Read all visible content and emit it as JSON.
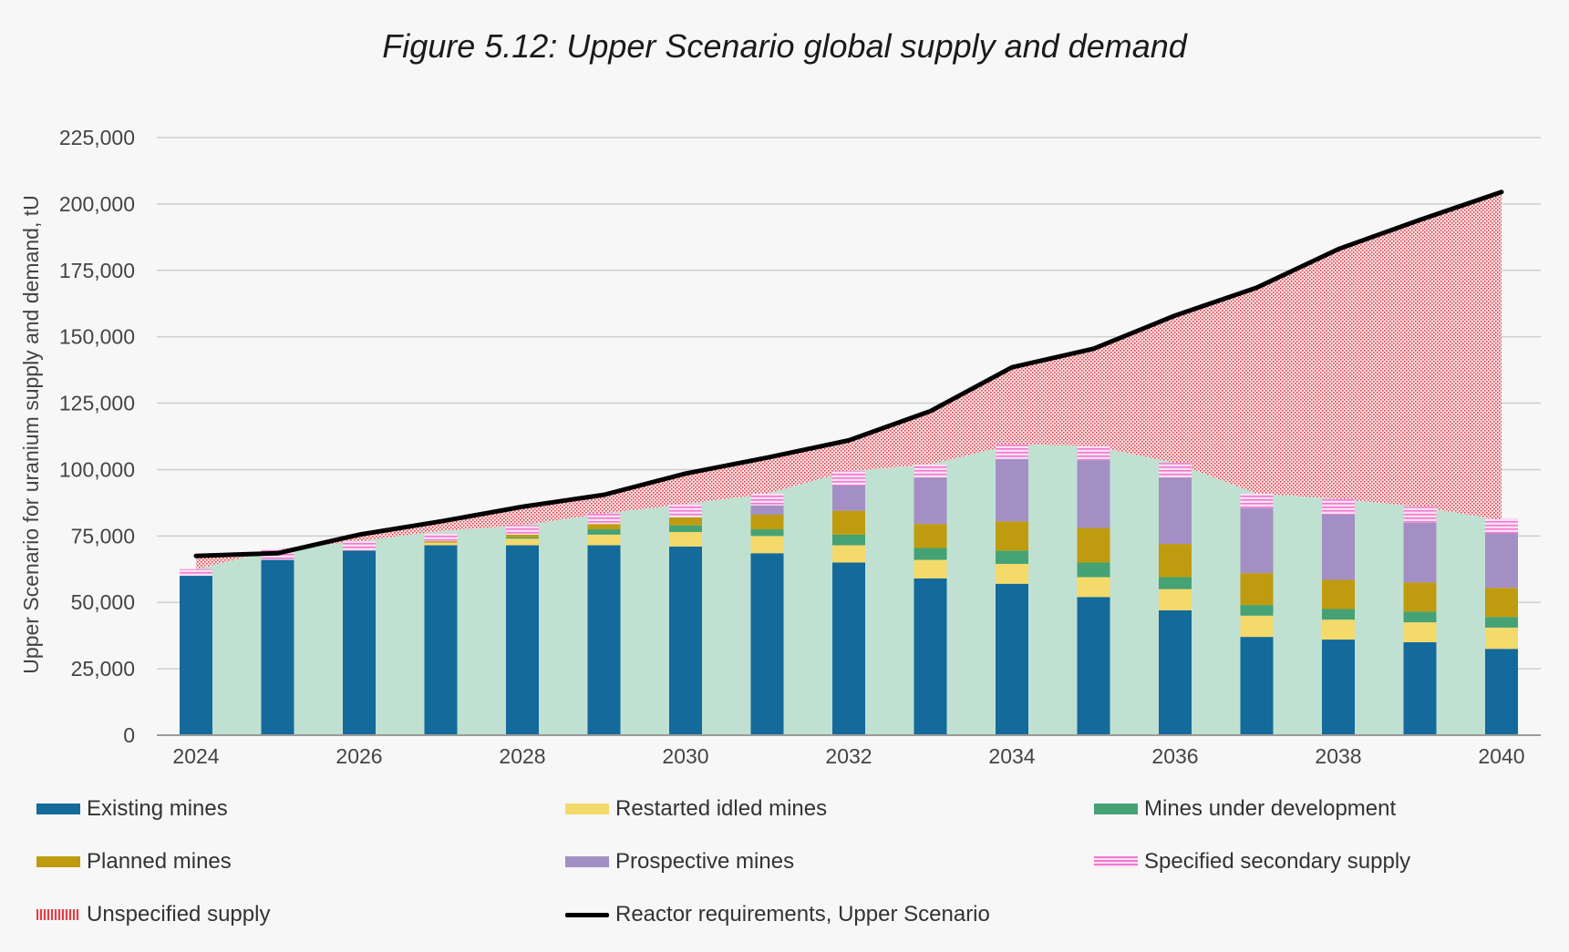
{
  "chart_data": {
    "type": "bar",
    "title": "Figure 5.12: Upper Scenario global supply and demand",
    "ylabel": "Upper  Scenario for uranium supply and demand, tU",
    "xlabel": "",
    "ylim": [
      0,
      225000
    ],
    "yticks": [
      "0",
      "25,000",
      "50,000",
      "75,000",
      "100,000",
      "125,000",
      "150,000",
      "175,000",
      "200,000",
      "225,000"
    ],
    "x_tick_labels": [
      "2024",
      "2026",
      "2028",
      "2030",
      "2032",
      "2034",
      "2036",
      "2038",
      "2040"
    ],
    "categories": [
      "2024",
      "2025",
      "2026",
      "2027",
      "2028",
      "2029",
      "2030",
      "2031",
      "2032",
      "2033",
      "2034",
      "2035",
      "2036",
      "2037",
      "2038",
      "2039",
      "2040"
    ],
    "grid": true,
    "legend_position": "bottom",
    "series": [
      {
        "name": "Existing mines",
        "color": "#136a9b",
        "values": [
          60000,
          66000,
          69500,
          71500,
          71500,
          71500,
          71000,
          68500,
          65000,
          59000,
          57000,
          52000,
          47000,
          37000,
          36000,
          35000,
          32500
        ]
      },
      {
        "name": "Restarted idled mines",
        "color": "#f4d96b",
        "values": [
          0,
          0,
          0,
          1000,
          2500,
          4000,
          5500,
          6500,
          6500,
          7000,
          7500,
          7500,
          8000,
          8000,
          7500,
          7500,
          8000
        ]
      },
      {
        "name": "Mines under development",
        "color": "#45a274",
        "values": [
          0,
          0,
          0,
          0,
          500,
          2000,
          2500,
          2500,
          4000,
          4500,
          5000,
          5500,
          4500,
          4000,
          4000,
          4000,
          4000
        ]
      },
      {
        "name": "Planned mines",
        "color": "#bf9c0f",
        "values": [
          0,
          0,
          0,
          500,
          1000,
          2000,
          3000,
          5500,
          9000,
          9000,
          11000,
          13000,
          12500,
          12000,
          11000,
          11000,
          11000
        ]
      },
      {
        "name": "Prospective mines",
        "color": "#a48fc4",
        "values": [
          0,
          0,
          0,
          0,
          0,
          0,
          0,
          3500,
          9500,
          17500,
          23500,
          25500,
          25000,
          24500,
          24500,
          22500,
          20500
        ]
      },
      {
        "name": "Specified secondary supply",
        "color": "#f078d0",
        "values": [
          2500,
          4000,
          3500,
          3000,
          3500,
          4000,
          5000,
          4500,
          5500,
          5000,
          5500,
          5500,
          5500,
          5500,
          6000,
          6000,
          5500
        ]
      },
      {
        "name": "Unspecified supply",
        "color": "#e0404a",
        "type": "area",
        "values": [
          0,
          0,
          0,
          2000,
          5000,
          7000,
          11000,
          13000,
          12000,
          20000,
          29000,
          37000,
          57000,
          77500,
          96000,
          107000,
          123500
        ]
      },
      {
        "name": "Reactor requirements, Upper Scenario",
        "color": "#000000",
        "type": "line",
        "values": [
          67500,
          68500,
          75500,
          80500,
          86000,
          90500,
          98500,
          104500,
          111000,
          122000,
          138500,
          145500,
          158000,
          168500,
          183000,
          194000,
          204500
        ]
      }
    ],
    "background_area": {
      "color": "#c0e1d1",
      "values": [
        62500,
        70000,
        73000,
        77000,
        79000,
        83500,
        87000,
        91000,
        99500,
        102000,
        109500,
        109000,
        102500,
        91000,
        89000,
        86000,
        81000
      ]
    }
  }
}
